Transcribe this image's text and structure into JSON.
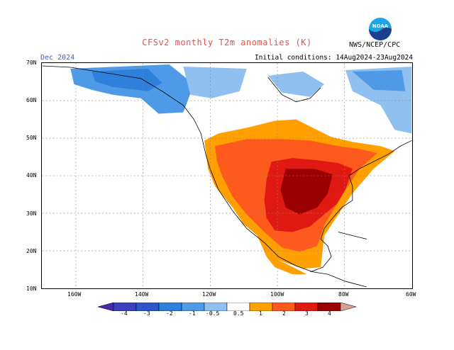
{
  "header": {
    "title": "CFSv2 monthly T2m anomalies (K)",
    "period": "Dec 2024",
    "init": "Initial conditions: 14Aug2024-23Aug2024",
    "agency": "NWS/NCEP/CPC",
    "logo_text": "NOAA"
  },
  "map": {
    "lat_labels": [
      "70N",
      "60N",
      "50N",
      "40N",
      "30N",
      "20N",
      "10N"
    ],
    "lon_labels": [
      "160W",
      "140W",
      "120W",
      "100W",
      "80W",
      "60W"
    ],
    "extent": {
      "lon_min": -170,
      "lon_max": -60,
      "lat_min": 10,
      "lat_max": 70
    },
    "regions": [
      {
        "name": "alaska-north-cold",
        "anomaly": -1
      },
      {
        "name": "north-canada-cool",
        "anomaly": -0.5
      },
      {
        "name": "hudson-cold",
        "anomaly": -1
      },
      {
        "name": "us-warm-outer",
        "anomaly": 0.5
      },
      {
        "name": "us-warm",
        "anomaly": 1
      },
      {
        "name": "central-us-hot",
        "anomaly": 2
      },
      {
        "name": "mexico-warm",
        "anomaly": 0.5
      }
    ]
  },
  "colorbar": {
    "labels": [
      "-4",
      "-3",
      "-2",
      "-1",
      "-0.5",
      "0.5",
      "1",
      "2",
      "3",
      "4"
    ],
    "colors": [
      "#4b2aa8",
      "#2d56c8",
      "#2f7fdc",
      "#4f9ae6",
      "#8fc0f0",
      "#ffffff",
      "#ff9f00",
      "#ff5a1e",
      "#e01a12",
      "#9b0000",
      "#d7a08f"
    ]
  }
}
